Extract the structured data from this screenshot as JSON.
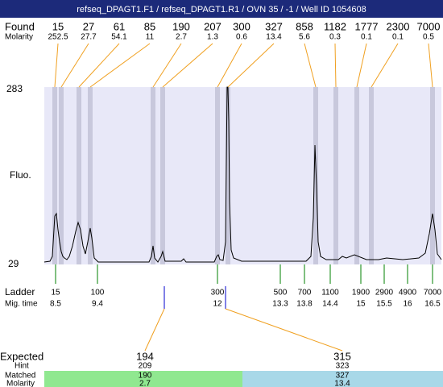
{
  "title": "refseq_DPAGT1.F1 / refseq_DPAGT1.R1 / OVN 35 / -1 / Well ID 1054608",
  "found": {
    "label": "Found",
    "molarity_label": "Molarity",
    "peaks": [
      {
        "size": 15,
        "molarity": 252.5
      },
      {
        "size": 27,
        "molarity": 27.7
      },
      {
        "size": 61,
        "molarity": 54.1
      },
      {
        "size": 85,
        "molarity": 11
      },
      {
        "size": 190,
        "molarity": 2.7
      },
      {
        "size": 207,
        "molarity": 1.3
      },
      {
        "size": 300,
        "molarity": 0.6
      },
      {
        "size": 327,
        "molarity": 13.4
      },
      {
        "size": 858,
        "molarity": 5.6
      },
      {
        "size": 1182,
        "molarity": 0.3
      },
      {
        "size": 1777,
        "molarity": 0.1
      },
      {
        "size": 2300,
        "molarity": 0.1
      },
      {
        "size": 7000,
        "molarity": 0.5
      }
    ]
  },
  "y_axis": {
    "label": "Fluo.",
    "max": 283,
    "min": 29
  },
  "ladder": {
    "label": "Ladder",
    "mig_label": "Mig. time",
    "markers": [
      {
        "size": 15,
        "time": 8.5
      },
      {
        "size": 100,
        "time": 9.4
      },
      {
        "size": 300,
        "time": 12
      },
      {
        "size": 500,
        "time": 13.3
      },
      {
        "size": 700,
        "time": 13.8
      },
      {
        "size": 1100,
        "time": 14.4
      },
      {
        "size": 1900,
        "time": 15
      },
      {
        "size": 2900,
        "time": 15.5
      },
      {
        "size": 4900,
        "time": 16
      },
      {
        "size": 7000,
        "time": 16.5
      }
    ]
  },
  "expected": {
    "label": "Expected",
    "hint_label": "Hint",
    "matched_label": "Matched",
    "molarity_label": "Molarity",
    "targets": [
      {
        "size": 194,
        "hint": 209,
        "matched": 190,
        "molarity": 2.7
      },
      {
        "size": 315,
        "hint": 323,
        "matched": 327,
        "molarity": 13.4
      }
    ]
  }
}
